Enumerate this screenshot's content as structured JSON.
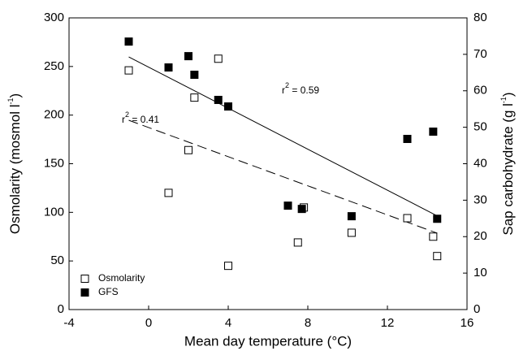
{
  "chart_data": {
    "type": "scatter",
    "x_label": "Mean day temperature (°C)",
    "y_label": {
      "text": "Osmolarity (mosmol l",
      "sup": "-1",
      "end": ")"
    },
    "y2_label": {
      "text": "Sap carbohydrate (g l",
      "sup": "-1",
      "end": ")"
    },
    "xlim": [
      -4,
      16
    ],
    "xticks": [
      -4,
      0,
      4,
      8,
      12,
      16
    ],
    "ylim": [
      0,
      300
    ],
    "yticks": [
      0,
      50,
      100,
      150,
      200,
      250,
      300
    ],
    "y2lim": [
      0,
      80
    ],
    "y2ticks": [
      0,
      10,
      20,
      30,
      40,
      50,
      60,
      70,
      80
    ],
    "legend": "lower left",
    "series": [
      {
        "name": "Osmolarity",
        "color": "#ffffff",
        "edgecolor": "#000000",
        "x": [
          -1,
          1,
          2,
          2.3,
          3.5,
          4,
          7.5,
          7.8,
          10.2,
          13,
          14.3,
          14.5
        ],
        "values": [
          246,
          120,
          164,
          218,
          258,
          45,
          69,
          105,
          79,
          94,
          75,
          55
        ]
      },
      {
        "name": "GFS",
        "color": "#000000",
        "edgecolor": "#000000",
        "axis": "y2",
        "x": [
          -1,
          1,
          2,
          2.3,
          3.5,
          4,
          7,
          7.7,
          10.2,
          13,
          14.3,
          14.5
        ],
        "values": [
          73.5,
          66.4,
          69.5,
          64.4,
          57.5,
          55.7,
          28.5,
          27.6,
          25.6,
          46.8,
          48.8,
          24.9
        ]
      }
    ],
    "trend_lines": [
      {
        "axis": "y2",
        "dash": "solid",
        "x": [
          -1,
          14.5
        ],
        "values": [
          69.3,
          25.7
        ]
      },
      {
        "axis": "y",
        "dash": "dashed",
        "x": [
          -1,
          14.5
        ],
        "values": [
          194.7,
          78.6
        ]
      }
    ],
    "annotations": [
      {
        "text": "r",
        "sup": "2",
        "end": " = 0.59"
      },
      {
        "text": "r",
        "sup": "2",
        "end": " = 0.41"
      }
    ]
  }
}
